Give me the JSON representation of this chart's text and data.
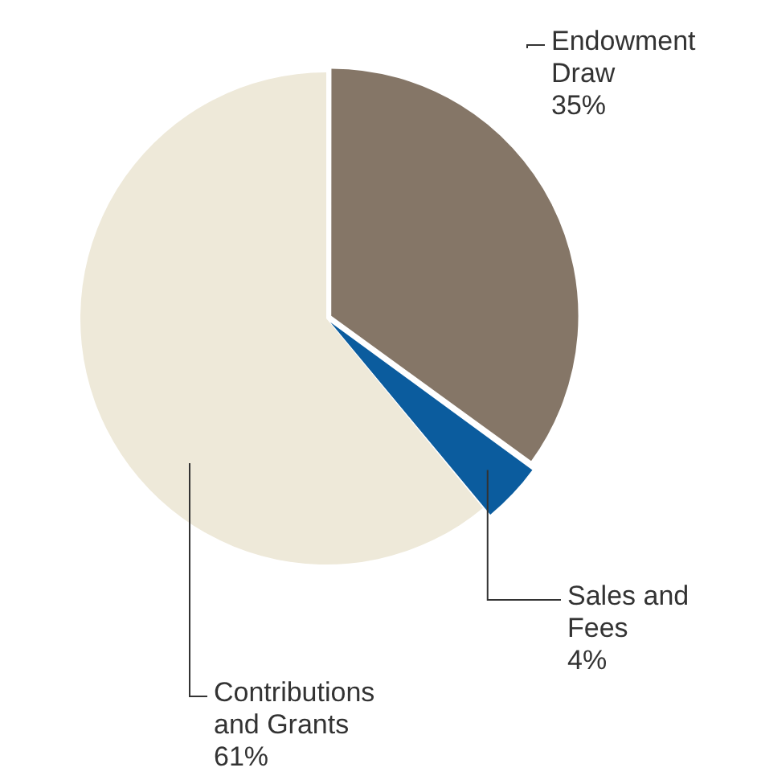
{
  "chart_data": {
    "type": "pie",
    "categories": [
      "Endowment Draw",
      "Sales and Fees",
      "Contributions and Grants"
    ],
    "values": [
      35,
      4,
      61
    ],
    "colors": [
      "#857667",
      "#0b5c9e",
      "#eee9d9"
    ],
    "value_labels": [
      "35%",
      "4%",
      "61%"
    ],
    "legend": false
  }
}
